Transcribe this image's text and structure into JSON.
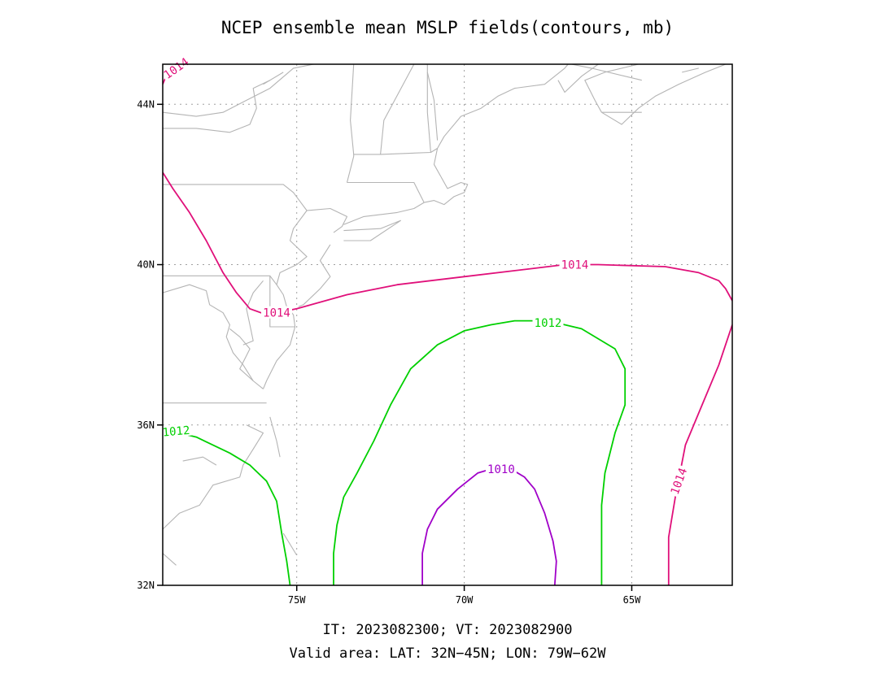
{
  "title": "NCEP ensemble mean MSLP fields(contours, mb)",
  "footer": {
    "line1": "IT: 2023082300; VT: 2023082900",
    "line2": "Valid area: LAT: 32N−45N; LON: 79W−62W"
  },
  "axes": {
    "lat_range": [
      32,
      45
    ],
    "lon_range": [
      -79,
      -62
    ],
    "lat_ticks": [
      {
        "value": 32,
        "label": "32N"
      },
      {
        "value": 36,
        "label": "36N"
      },
      {
        "value": 40,
        "label": "40N"
      },
      {
        "value": 44,
        "label": "44N"
      }
    ],
    "lon_ticks": [
      {
        "value": -75,
        "label": "75W"
      },
      {
        "value": -70,
        "label": "70W"
      },
      {
        "value": -65,
        "label": "65W"
      }
    ],
    "grid": "dotted"
  },
  "colors": {
    "contour_1014": "#e0107a",
    "contour_1012": "#00d000",
    "contour_1010": "#a000c8",
    "coastline": "#b4b4b4",
    "grid": "#a0a0a0",
    "frame": "#000000"
  },
  "contours": [
    {
      "name": "1014-northwest",
      "value": 1014,
      "color_key": "contour_1014",
      "points": [
        [
          -79,
          44.5
        ],
        [
          -78.8,
          44.9
        ]
      ],
      "labels": [
        {
          "text": "1014",
          "lon": -78.6,
          "lat": 44.9,
          "angle": -35
        }
      ]
    },
    {
      "name": "1014-north",
      "value": 1014,
      "color_key": "contour_1014",
      "points": [
        [
          -79,
          42.3
        ],
        [
          -78.7,
          41.9
        ],
        [
          -78.2,
          41.3
        ],
        [
          -77.7,
          40.6
        ],
        [
          -77.2,
          39.8
        ],
        [
          -76.8,
          39.3
        ],
        [
          -76.4,
          38.9
        ],
        [
          -75.9,
          38.75
        ],
        [
          -75,
          38.9
        ],
        [
          -73.5,
          39.25
        ],
        [
          -72,
          39.5
        ],
        [
          -70,
          39.7
        ],
        [
          -68,
          39.9
        ],
        [
          -67,
          40
        ],
        [
          -66,
          40
        ],
        [
          -64,
          39.95
        ],
        [
          -63,
          39.8
        ],
        [
          -62.4,
          39.6
        ],
        [
          -62.2,
          39.4
        ],
        [
          -62,
          39.1
        ]
      ],
      "labels": [
        {
          "text": "1014",
          "lon": -75.6,
          "lat": 38.8,
          "angle": 0
        },
        {
          "text": "1014",
          "lon": -66.7,
          "lat": 40.0,
          "angle": 0
        }
      ]
    },
    {
      "name": "1014-east",
      "value": 1014,
      "color_key": "contour_1014",
      "points": [
        [
          -62,
          38.5
        ],
        [
          -62.4,
          37.5
        ],
        [
          -62.9,
          36.5
        ],
        [
          -63.4,
          35.5
        ],
        [
          -63.7,
          34.2
        ],
        [
          -63.9,
          33.2
        ],
        [
          -63.9,
          32
        ]
      ],
      "labels": [
        {
          "text": "1014",
          "lon": -63.6,
          "lat": 34.6,
          "angle": -70
        }
      ]
    },
    {
      "name": "1012",
      "value": 1012,
      "color_key": "contour_1012",
      "points": [
        [
          -79,
          35.9
        ],
        [
          -78,
          35.7
        ],
        [
          -77,
          35.3
        ],
        [
          -76.4,
          35
        ],
        [
          -75.9,
          34.6
        ],
        [
          -75.6,
          34.1
        ],
        [
          -75.45,
          33.3
        ],
        [
          -75.3,
          32.6
        ],
        [
          -75.2,
          32
        ],
        [
          null,
          null
        ],
        [
          -73.9,
          32
        ],
        [
          -73.9,
          32.8
        ],
        [
          -73.8,
          33.5
        ],
        [
          -73.6,
          34.2
        ],
        [
          -73.2,
          34.8
        ],
        [
          -72.7,
          35.6
        ],
        [
          -72.2,
          36.5
        ],
        [
          -71.6,
          37.4
        ],
        [
          -70.8,
          38
        ],
        [
          -70,
          38.35
        ],
        [
          -69.2,
          38.5
        ],
        [
          -68.5,
          38.6
        ],
        [
          -67.5,
          38.6
        ],
        [
          -66.5,
          38.4
        ],
        [
          -65.5,
          37.9
        ],
        [
          -65.2,
          37.4
        ],
        [
          -65.2,
          36.5
        ],
        [
          -65.5,
          35.8
        ],
        [
          -65.8,
          34.8
        ],
        [
          -65.9,
          34
        ],
        [
          -65.9,
          32
        ]
      ],
      "labels": [
        {
          "text": "1012",
          "lon": -78.6,
          "lat": 35.85,
          "angle": -5
        },
        {
          "text": "1012",
          "lon": -67.5,
          "lat": 38.55,
          "angle": 0
        }
      ]
    },
    {
      "name": "1010",
      "value": 1010,
      "color_key": "contour_1010",
      "points": [
        [
          -71.25,
          32
        ],
        [
          -71.25,
          32.8
        ],
        [
          -71.1,
          33.4
        ],
        [
          -70.8,
          33.9
        ],
        [
          -70.2,
          34.4
        ],
        [
          -69.6,
          34.8
        ],
        [
          -69.2,
          34.9
        ],
        [
          -68.6,
          34.9
        ],
        [
          -68.2,
          34.7
        ],
        [
          -67.9,
          34.4
        ],
        [
          -67.6,
          33.8
        ],
        [
          -67.35,
          33.1
        ],
        [
          -67.25,
          32.6
        ],
        [
          -67.3,
          32
        ]
      ],
      "labels": [
        {
          "text": "1010",
          "lon": -68.9,
          "lat": 34.9,
          "angle": 0
        }
      ]
    }
  ],
  "coastlines": [
    [
      [
        -79,
        43.8
      ],
      [
        -78,
        43.7
      ],
      [
        -77.2,
        43.8
      ],
      [
        -76.5,
        44.1
      ],
      [
        -75.8,
        44.4
      ],
      [
        -75.1,
        44.9
      ],
      [
        -74.5,
        45
      ]
    ],
    [
      [
        -79,
        43.4
      ],
      [
        -78,
        43.4
      ],
      [
        -77,
        43.3
      ],
      [
        -76.4,
        43.5
      ],
      [
        -76.2,
        43.9
      ],
      [
        -76.3,
        44.4
      ],
      [
        -75.8,
        44.6
      ]
    ],
    [
      [
        -76,
        44.5
      ],
      [
        -75.4,
        44.8
      ]
    ],
    [
      [
        -79,
        42.8
      ],
      [
        -79,
        41.9
      ]
    ],
    [
      [
        -79,
        42
      ],
      [
        -75.4,
        42
      ],
      [
        -75.1,
        41.8
      ],
      [
        -74.7,
        41.35
      ],
      [
        -75.1,
        40.9
      ],
      [
        -75.2,
        40.6
      ],
      [
        -74.7,
        40.2
      ],
      [
        -75,
        40
      ],
      [
        -75.5,
        39.8
      ],
      [
        -75.6,
        39.5
      ]
    ],
    [
      [
        -79,
        39.72
      ],
      [
        -75.8,
        39.72
      ],
      [
        -75.8,
        38.45
      ],
      [
        -75.05,
        38.45
      ]
    ],
    [
      [
        -75.8,
        39.72
      ],
      [
        -75.6,
        39.5
      ],
      [
        -75.4,
        39.25
      ],
      [
        -75.3,
        38.95
      ],
      [
        -75.1,
        38.75
      ],
      [
        -75.05,
        38.45
      ]
    ],
    [
      [
        -75.05,
        38.45
      ],
      [
        -75.2,
        38.0
      ],
      [
        -75.6,
        37.6
      ],
      [
        -75.9,
        37.1
      ],
      [
        -76.0,
        36.9
      ]
    ],
    [
      [
        -76,
        39.6
      ],
      [
        -76.3,
        39.3
      ],
      [
        -76.5,
        38.9
      ],
      [
        -76.4,
        38.5
      ],
      [
        -76.3,
        38.1
      ],
      [
        -76.6,
        38.0
      ]
    ],
    [
      [
        -77,
        38.4
      ],
      [
        -76.7,
        38.2
      ],
      [
        -76.4,
        37.9
      ],
      [
        -76.7,
        37.4
      ],
      [
        -76.3,
        37.1
      ]
    ],
    [
      [
        -79,
        39.3
      ],
      [
        -78.2,
        39.5
      ],
      [
        -77.7,
        39.35
      ],
      [
        -77.6,
        39.0
      ],
      [
        -77.2,
        38.8
      ],
      [
        -77.0,
        38.5
      ],
      [
        -77.1,
        38.2
      ],
      [
        -76.9,
        37.8
      ],
      [
        -76.6,
        37.5
      ],
      [
        -76.3,
        37.1
      ],
      [
        -76.0,
        36.9
      ]
    ],
    [
      [
        -79,
        36.55
      ],
      [
        -75.9,
        36.55
      ]
    ],
    [
      [
        -75.8,
        36.2
      ],
      [
        -75.6,
        35.6
      ],
      [
        -75.5,
        35.2
      ]
    ],
    [
      [
        -76.5,
        36.0
      ],
      [
        -76.0,
        35.8
      ],
      [
        -76.3,
        35.4
      ],
      [
        -76.6,
        35.0
      ],
      [
        -76.7,
        34.7
      ],
      [
        -77.5,
        34.5
      ],
      [
        -77.9,
        34.0
      ],
      [
        -78.5,
        33.8
      ],
      [
        -79,
        33.4
      ]
    ],
    [
      [
        -78.4,
        35.1
      ],
      [
        -77.8,
        35.2
      ],
      [
        -77.4,
        35.0
      ]
    ],
    [
      [
        -79,
        32.8
      ],
      [
        -78.6,
        32.5
      ]
    ],
    [
      [
        -74.7,
        41.35
      ],
      [
        -74.0,
        41.4
      ],
      [
        -73.5,
        41.2
      ],
      [
        -73.65,
        40.95
      ],
      [
        -73.9,
        40.8
      ]
    ],
    [
      [
        -74.0,
        40.5
      ],
      [
        -74.3,
        40.1
      ],
      [
        -74.0,
        39.7
      ],
      [
        -74.3,
        39.4
      ],
      [
        -74.8,
        39.0
      ],
      [
        -74.95,
        38.95
      ]
    ],
    [
      [
        -73.6,
        40.85
      ],
      [
        -72.5,
        40.9
      ],
      [
        -71.9,
        41.1
      ],
      [
        -72.8,
        40.6
      ],
      [
        -73.6,
        40.6
      ]
    ],
    [
      [
        -73.6,
        41.0
      ],
      [
        -73.0,
        41.2
      ],
      [
        -72.0,
        41.3
      ],
      [
        -71.5,
        41.4
      ],
      [
        -71.2,
        41.55
      ]
    ],
    [
      [
        -73.5,
        42.05
      ],
      [
        -71.8,
        42.05
      ],
      [
        -71.5,
        42.05
      ],
      [
        -71.2,
        41.55
      ]
    ],
    [
      [
        -73.5,
        42.05
      ],
      [
        -73.3,
        42.7
      ],
      [
        -73.3,
        42.75
      ],
      [
        -72.5,
        42.75
      ],
      [
        -71.0,
        42.8
      ],
      [
        -70.8,
        42.9
      ]
    ],
    [
      [
        -71.2,
        41.55
      ],
      [
        -70.9,
        41.6
      ],
      [
        -70.6,
        41.5
      ],
      [
        -70.3,
        41.7
      ],
      [
        -70.0,
        41.8
      ],
      [
        -69.9,
        42.0
      ],
      [
        -70.1,
        42.05
      ],
      [
        -70.5,
        41.9
      ],
      [
        -70.7,
        42.2
      ]
    ],
    [
      [
        -70.7,
        42.2
      ],
      [
        -70.9,
        42.5
      ],
      [
        -70.8,
        42.9
      ],
      [
        -70.6,
        43.2
      ],
      [
        -70.1,
        43.7
      ],
      [
        -69.5,
        43.9
      ],
      [
        -69.0,
        44.2
      ],
      [
        -68.5,
        44.4
      ],
      [
        -67.6,
        44.5
      ],
      [
        -67.0,
        44.9
      ],
      [
        -66.9,
        45
      ]
    ],
    [
      [
        -73.3,
        42.75
      ],
      [
        -73.4,
        43.6
      ],
      [
        -73.3,
        45
      ]
    ],
    [
      [
        -72.5,
        42.75
      ],
      [
        -72.4,
        43.6
      ],
      [
        -71.5,
        45
      ]
    ],
    [
      [
        -71.0,
        42.8
      ],
      [
        -71.1,
        43.8
      ],
      [
        -71.1,
        45
      ]
    ],
    [
      [
        -70.8,
        43.1
      ],
      [
        -70.9,
        44.1
      ],
      [
        -71.1,
        44.8
      ]
    ],
    [
      [
        -66.0,
        45
      ],
      [
        -66.5,
        44.7
      ],
      [
        -67.0,
        44.3
      ],
      [
        -67.2,
        44.6
      ]
    ],
    [
      [
        -65.9,
        43.8
      ],
      [
        -66.1,
        44.1
      ],
      [
        -66.4,
        44.6
      ],
      [
        -65.8,
        44.8
      ],
      [
        -64.8,
        45
      ]
    ],
    [
      [
        -65.9,
        43.8
      ],
      [
        -65.3,
        43.5
      ],
      [
        -64.8,
        43.9
      ],
      [
        -64.3,
        44.2
      ],
      [
        -63.6,
        44.5
      ],
      [
        -62.8,
        44.8
      ],
      [
        -62.2,
        45
      ]
    ],
    [
      [
        -65.9,
        43.8
      ],
      [
        -64.7,
        43.8
      ]
    ],
    [
      [
        -66.8,
        45
      ],
      [
        -66.2,
        44.9
      ],
      [
        -64.7,
        44.6
      ]
    ],
    [
      [
        -63.5,
        44.8
      ],
      [
        -63.0,
        44.9
      ]
    ],
    [
      [
        -75.0,
        32.75
      ],
      [
        -75.4,
        33.3
      ]
    ]
  ]
}
